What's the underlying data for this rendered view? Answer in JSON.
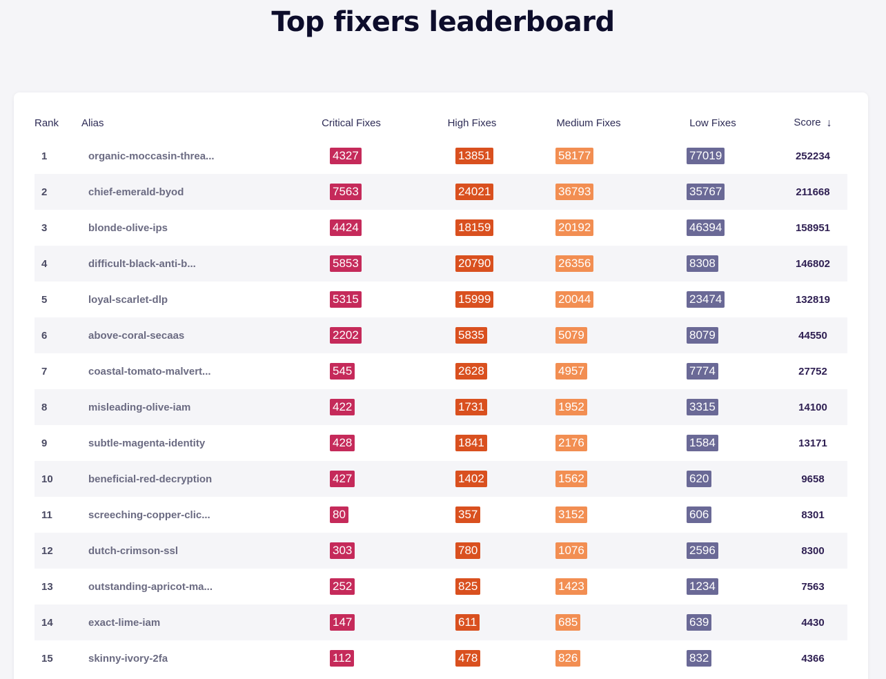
{
  "page": {
    "title": "Top fixers leaderboard"
  },
  "colors": {
    "critical": "#c52a5a",
    "high": "#d9501f",
    "medium": "#f28e52",
    "low": "#6a6996"
  },
  "table": {
    "headers": {
      "rank": "Rank",
      "alias": "Alias",
      "critical": "Critical Fixes",
      "high": "High Fixes",
      "medium": "Medium Fixes",
      "low": "Low Fixes",
      "score": "Score",
      "sort_icon": "arrow-down-icon"
    },
    "rows": [
      {
        "rank": "1",
        "alias": "organic-moccasin-threa...",
        "critical": "4327",
        "high": "13851",
        "medium": "58177",
        "low": "77019",
        "score": "252234"
      },
      {
        "rank": "2",
        "alias": "chief-emerald-byod",
        "critical": "7563",
        "high": "24021",
        "medium": "36793",
        "low": "35767",
        "score": "211668"
      },
      {
        "rank": "3",
        "alias": "blonde-olive-ips",
        "critical": "4424",
        "high": "18159",
        "medium": "20192",
        "low": "46394",
        "score": "158951"
      },
      {
        "rank": "4",
        "alias": "difficult-black-anti-b...",
        "critical": "5853",
        "high": "20790",
        "medium": "26356",
        "low": "8308",
        "score": "146802"
      },
      {
        "rank": "5",
        "alias": "loyal-scarlet-dlp",
        "critical": "5315",
        "high": "15999",
        "medium": "20044",
        "low": "23474",
        "score": "132819"
      },
      {
        "rank": "6",
        "alias": "above-coral-secaas",
        "critical": "2202",
        "high": "5835",
        "medium": "5079",
        "low": "8079",
        "score": "44550"
      },
      {
        "rank": "7",
        "alias": "coastal-tomato-malvert...",
        "critical": "545",
        "high": "2628",
        "medium": "4957",
        "low": "7774",
        "score": "27752"
      },
      {
        "rank": "8",
        "alias": "misleading-olive-iam",
        "critical": "422",
        "high": "1731",
        "medium": "1952",
        "low": "3315",
        "score": "14100"
      },
      {
        "rank": "9",
        "alias": "subtle-magenta-identity",
        "critical": "428",
        "high": "1841",
        "medium": "2176",
        "low": "1584",
        "score": "13171"
      },
      {
        "rank": "10",
        "alias": "beneficial-red-decryption",
        "critical": "427",
        "high": "1402",
        "medium": "1562",
        "low": "620",
        "score": "9658"
      },
      {
        "rank": "11",
        "alias": "screeching-copper-clic...",
        "critical": "80",
        "high": "357",
        "medium": "3152",
        "low": "606",
        "score": "8301"
      },
      {
        "rank": "12",
        "alias": "dutch-crimson-ssl",
        "critical": "303",
        "high": "780",
        "medium": "1076",
        "low": "2596",
        "score": "8300"
      },
      {
        "rank": "13",
        "alias": "outstanding-apricot-ma...",
        "critical": "252",
        "high": "825",
        "medium": "1423",
        "low": "1234",
        "score": "7563"
      },
      {
        "rank": "14",
        "alias": "exact-lime-iam",
        "critical": "147",
        "high": "611",
        "medium": "685",
        "low": "639",
        "score": "4430"
      },
      {
        "rank": "15",
        "alias": "skinny-ivory-2fa",
        "critical": "112",
        "high": "478",
        "medium": "826",
        "low": "832",
        "score": "4366"
      }
    ]
  }
}
